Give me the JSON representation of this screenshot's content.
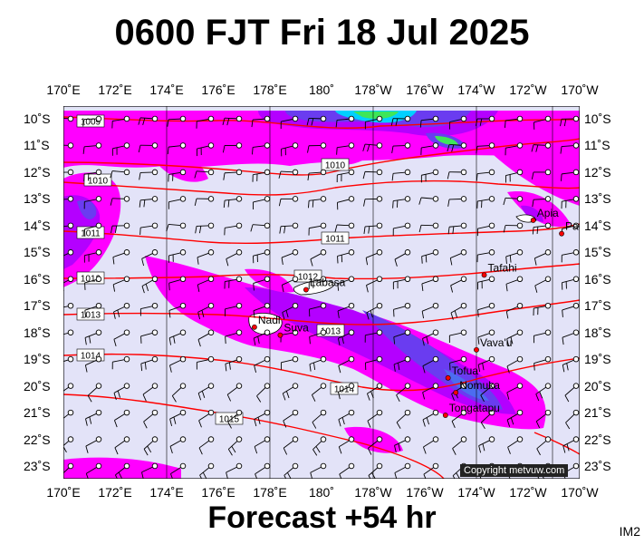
{
  "title": "0600 FJT Fri 18 Jul 2025",
  "forecast": "Forecast +54 hr",
  "corner_label": "IM2",
  "copyright": "Copyright metvuw.com",
  "lon_labels": [
    "170˚E",
    "172˚E",
    "174˚E",
    "176˚E",
    "178˚E",
    "180˚",
    "178˚W",
    "176˚W",
    "174˚W",
    "172˚W",
    "170˚W"
  ],
  "lat_labels": [
    "10˚S",
    "11˚S",
    "12˚S",
    "13˚S",
    "14˚S",
    "15˚S",
    "16˚S",
    "17˚S",
    "18˚S",
    "19˚S",
    "20˚S",
    "21˚S",
    "22˚S",
    "23˚S"
  ],
  "cities": [
    {
      "name": "Apia",
      "lon": -171.8,
      "lat": -13.8
    },
    {
      "name": "Pago Pago",
      "lon": -170.7,
      "lat": -14.3
    },
    {
      "name": "Tafahi",
      "lon": -173.7,
      "lat": -15.85
    },
    {
      "name": "Labasa",
      "lon": 179.4,
      "lat": -16.4
    },
    {
      "name": "Nadi",
      "lon": 177.4,
      "lat": -17.8
    },
    {
      "name": "Suva",
      "lon": 178.4,
      "lat": -18.1
    },
    {
      "name": "Vava'u",
      "lon": -174.0,
      "lat": -18.65
    },
    {
      "name": "Tofua",
      "lon": -175.1,
      "lat": -19.7
    },
    {
      "name": "Nomuka",
      "lon": -174.8,
      "lat": -20.25
    },
    {
      "name": "Tongatapu",
      "lon": -175.2,
      "lat": -21.1
    }
  ],
  "isobars": [
    "1009",
    "1010",
    "1010",
    "1011",
    "1011",
    "1012",
    "1012",
    "1013",
    "1013",
    "1014",
    "1014",
    "1015"
  ],
  "colors": {
    "background": "#e3e3f8",
    "rain_light": "#ff00ff",
    "rain_medium": "#b400ff",
    "rain_heavy": "#6a3cf0",
    "rain_cyan": "#00e0ff",
    "rain_green": "#3ee65a",
    "isobar": "#ff0000",
    "land": "#ffffff",
    "grid": "#000000"
  }
}
